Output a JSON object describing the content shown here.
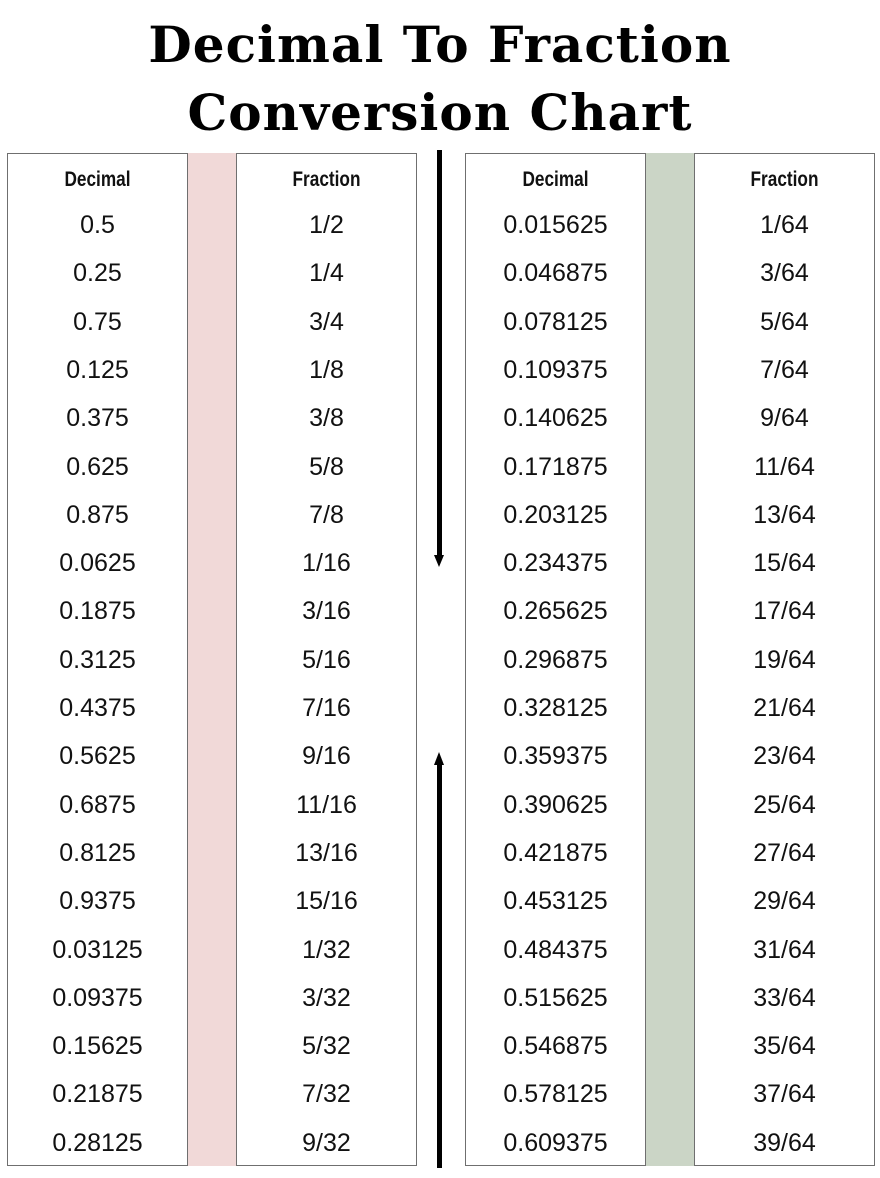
{
  "title": {
    "line1": "Decimal To Fraction",
    "line2": "Conversion Chart"
  },
  "colors": {
    "left_band": "#f1d9d8",
    "right_band": "#cbd5c6"
  },
  "left_table": {
    "decimal_header": "Decimal",
    "fraction_header": "Fraction",
    "decimals": [
      "0.5",
      "0.25",
      "0.75",
      "0.125",
      "0.375",
      "0.625",
      "0.875",
      "0.0625",
      "0.1875",
      "0.3125",
      "0.4375",
      "0.5625",
      "0.6875",
      "0.8125",
      "0.9375",
      "0.03125",
      "0.09375",
      "0.15625",
      "0.21875",
      "0.28125"
    ],
    "fractions": [
      "1/2",
      "1/4",
      "3/4",
      "1/8",
      "3/8",
      "5/8",
      "7/8",
      "1/16",
      "3/16",
      "5/16",
      "7/16",
      "9/16",
      "11/16",
      "13/16",
      "15/16",
      "1/32",
      "3/32",
      "5/32",
      "7/32",
      "9/32"
    ]
  },
  "right_table": {
    "decimal_header": "Decimal",
    "fraction_header": "Fraction",
    "decimals": [
      "0.015625",
      "0.046875",
      "0.078125",
      "0.109375",
      "0.140625",
      "0.171875",
      "0.203125",
      "0.234375",
      "0.265625",
      "0.296875",
      "0.328125",
      "0.359375",
      "0.390625",
      "0.421875",
      "0.453125",
      "0.484375",
      "0.515625",
      "0.546875",
      "0.578125",
      "0.609375"
    ],
    "fractions": [
      "1/64",
      "3/64",
      "5/64",
      "7/64",
      "9/64",
      "11/64",
      "13/64",
      "15/64",
      "17/64",
      "19/64",
      "21/64",
      "23/64",
      "25/64",
      "27/64",
      "29/64",
      "31/64",
      "33/64",
      "35/64",
      "37/64",
      "39/64"
    ]
  }
}
